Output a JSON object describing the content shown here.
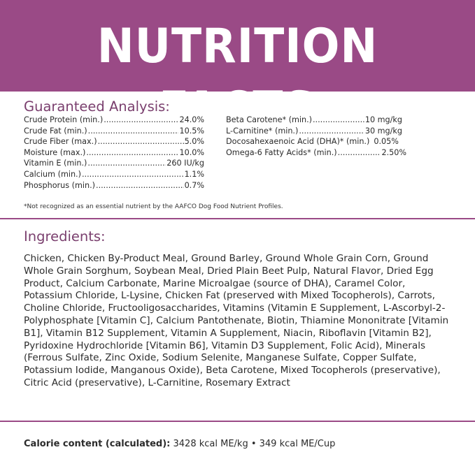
{
  "header": {
    "title": "NUTRITION FACTS"
  },
  "guaranteed_analysis": {
    "title": "Guaranteed Analysis:",
    "left": [
      {
        "name": "Crude Protein (min.)",
        "value": "24.0%"
      },
      {
        "name": "Crude Fat (min.)",
        "value": "10.5%"
      },
      {
        "name": "Crude Fiber (max.)",
        "value": "5.0%"
      },
      {
        "name": "Moisture (max.)",
        "value": "10.0%"
      },
      {
        "name": "Vitamin E (min.)",
        "value": "260 IU/kg"
      },
      {
        "name": "Calcium (min.)",
        "value": "1.1%"
      },
      {
        "name": "Phosphorus (min.)",
        "value": "0.7%"
      }
    ],
    "right": [
      {
        "name": "Beta Carotene* (min.)",
        "value": "10 mg/kg"
      },
      {
        "name": "L-Carnitine* (min.)",
        "value": "30 mg/kg"
      },
      {
        "name": "Docosahexaenoic Acid (DHA)* (min.)",
        "value": "0.05%"
      },
      {
        "name": "Omega-6 Fatty Acids* (min.)",
        "value": "2.50%"
      }
    ],
    "footnote": "*Not recognized as an essential nutrient by the AAFCO Dog Food Nutrient Profiles."
  },
  "ingredients": {
    "title": "Ingredients:",
    "text": "Chicken, Chicken By-Product Meal, Ground Barley, Ground Whole Grain Corn, Ground Whole Grain Sorghum, Soybean Meal, Dried Plain Beet Pulp, Natural Flavor, Dried Egg Product, Calcium Carbonate, Marine Microalgae (source of DHA), Caramel Color, Potassium Chloride, L-Lysine, Chicken Fat (preserved with Mixed Tocopherols), Carrots, Choline Chloride, Fructooligosaccharides, Vitamins (Vitamin E Supplement, L-Ascorbyl-2-Polyphosphate [Vitamin C], Calcium Pantothenate, Biotin, Thiamine Mononitrate [Vitamin B1], Vitamin B12 Supplement, Vitamin A Supplement, Niacin, Riboflavin [Vitamin B2], Pyridoxine Hydrochloride [Vitamin B6], Vitamin D3 Supplement, Folic Acid), Minerals (Ferrous Sulfate, Zinc Oxide, Sodium Selenite, Manganese Sulfate, Copper Sulfate, Potassium Iodide, Manganous Oxide), Beta Carotene, Mixed Tocopherols (preservative), Citric Acid (preservative), L-Carnitine, Rosemary Extract"
  },
  "calorie": {
    "label": "Calorie content (calculated):",
    "value": " 3428 kcal ME/kg • 349 kcal ME/Cup"
  },
  "colors": {
    "accent": "#9a4a86",
    "heading": "#7a3f6e",
    "text": "#2b2b2b"
  }
}
